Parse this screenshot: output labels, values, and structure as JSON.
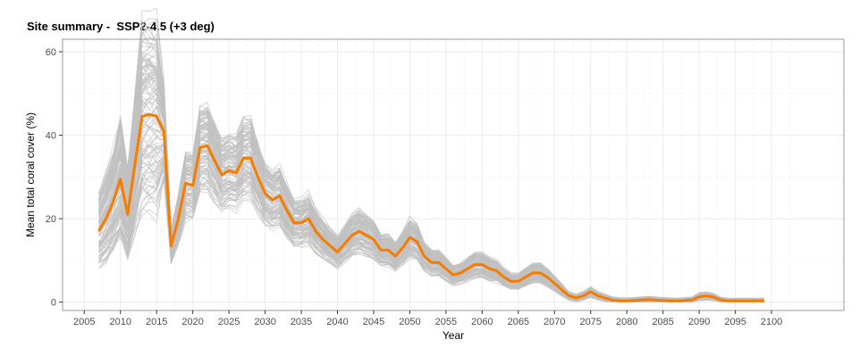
{
  "chart_data": {
    "type": "line",
    "title": "Site summary -  SSP2-4.5 (+3 deg)",
    "xlabel": "Year",
    "ylabel": "Mean total coral cover (%)",
    "xlim": [
      2002,
      2110
    ],
    "ylim": [
      -2,
      63
    ],
    "x_ticks": [
      2005,
      2010,
      2015,
      2020,
      2025,
      2030,
      2035,
      2040,
      2045,
      2050,
      2055,
      2060,
      2065,
      2070,
      2075,
      2080,
      2085,
      2090,
      2095,
      2100
    ],
    "y_ticks": [
      0,
      20,
      40,
      60
    ],
    "grid": true,
    "x": [
      2007,
      2008,
      2009,
      2010,
      2011,
      2012,
      2013,
      2014,
      2015,
      2016,
      2017,
      2018,
      2019,
      2020,
      2021,
      2022,
      2023,
      2024,
      2025,
      2026,
      2027,
      2028,
      2029,
      2030,
      2031,
      2032,
      2033,
      2034,
      2035,
      2036,
      2037,
      2038,
      2039,
      2040,
      2041,
      2042,
      2043,
      2044,
      2045,
      2046,
      2047,
      2048,
      2049,
      2050,
      2051,
      2052,
      2053,
      2054,
      2055,
      2056,
      2057,
      2058,
      2059,
      2060,
      2061,
      2062,
      2063,
      2064,
      2065,
      2066,
      2067,
      2068,
      2069,
      2070,
      2071,
      2072,
      2073,
      2074,
      2075,
      2076,
      2077,
      2078,
      2079,
      2080,
      2081,
      2082,
      2083,
      2084,
      2085,
      2086,
      2087,
      2088,
      2089,
      2090,
      2091,
      2092,
      2093,
      2094,
      2095,
      2096,
      2097,
      2098,
      2099
    ],
    "series": [
      {
        "color": "#f57c00",
        "role": "mean",
        "values": [
          17,
          20,
          24,
          29.5,
          21,
          33,
          44.5,
          45,
          44.5,
          41,
          13.5,
          20,
          28.5,
          28,
          37,
          37.5,
          34,
          30.5,
          31.5,
          31,
          34.5,
          34.5,
          30,
          26,
          24.5,
          25.5,
          22,
          19,
          19,
          20,
          17,
          15,
          13.5,
          12,
          14,
          16,
          17,
          16,
          15,
          12.5,
          12.5,
          11,
          13,
          15.5,
          14.5,
          11,
          9.5,
          9.5,
          8,
          6.5,
          7,
          8,
          9,
          9,
          8,
          7.5,
          6,
          5,
          5,
          6,
          7,
          7,
          6,
          4.5,
          3,
          1.5,
          1,
          1.5,
          2.5,
          1.5,
          1,
          0.5,
          0.3,
          0.3,
          0.4,
          0.5,
          0.6,
          0.5,
          0.4,
          0.3,
          0.3,
          0.4,
          0.5,
          1.3,
          1.5,
          1.2,
          0.5,
          0.3,
          0.3,
          0.3,
          0.3,
          0.3,
          0.3
        ]
      },
      {
        "color": "#c0c0c0",
        "role": "simulations",
        "count": 120
      }
    ]
  }
}
